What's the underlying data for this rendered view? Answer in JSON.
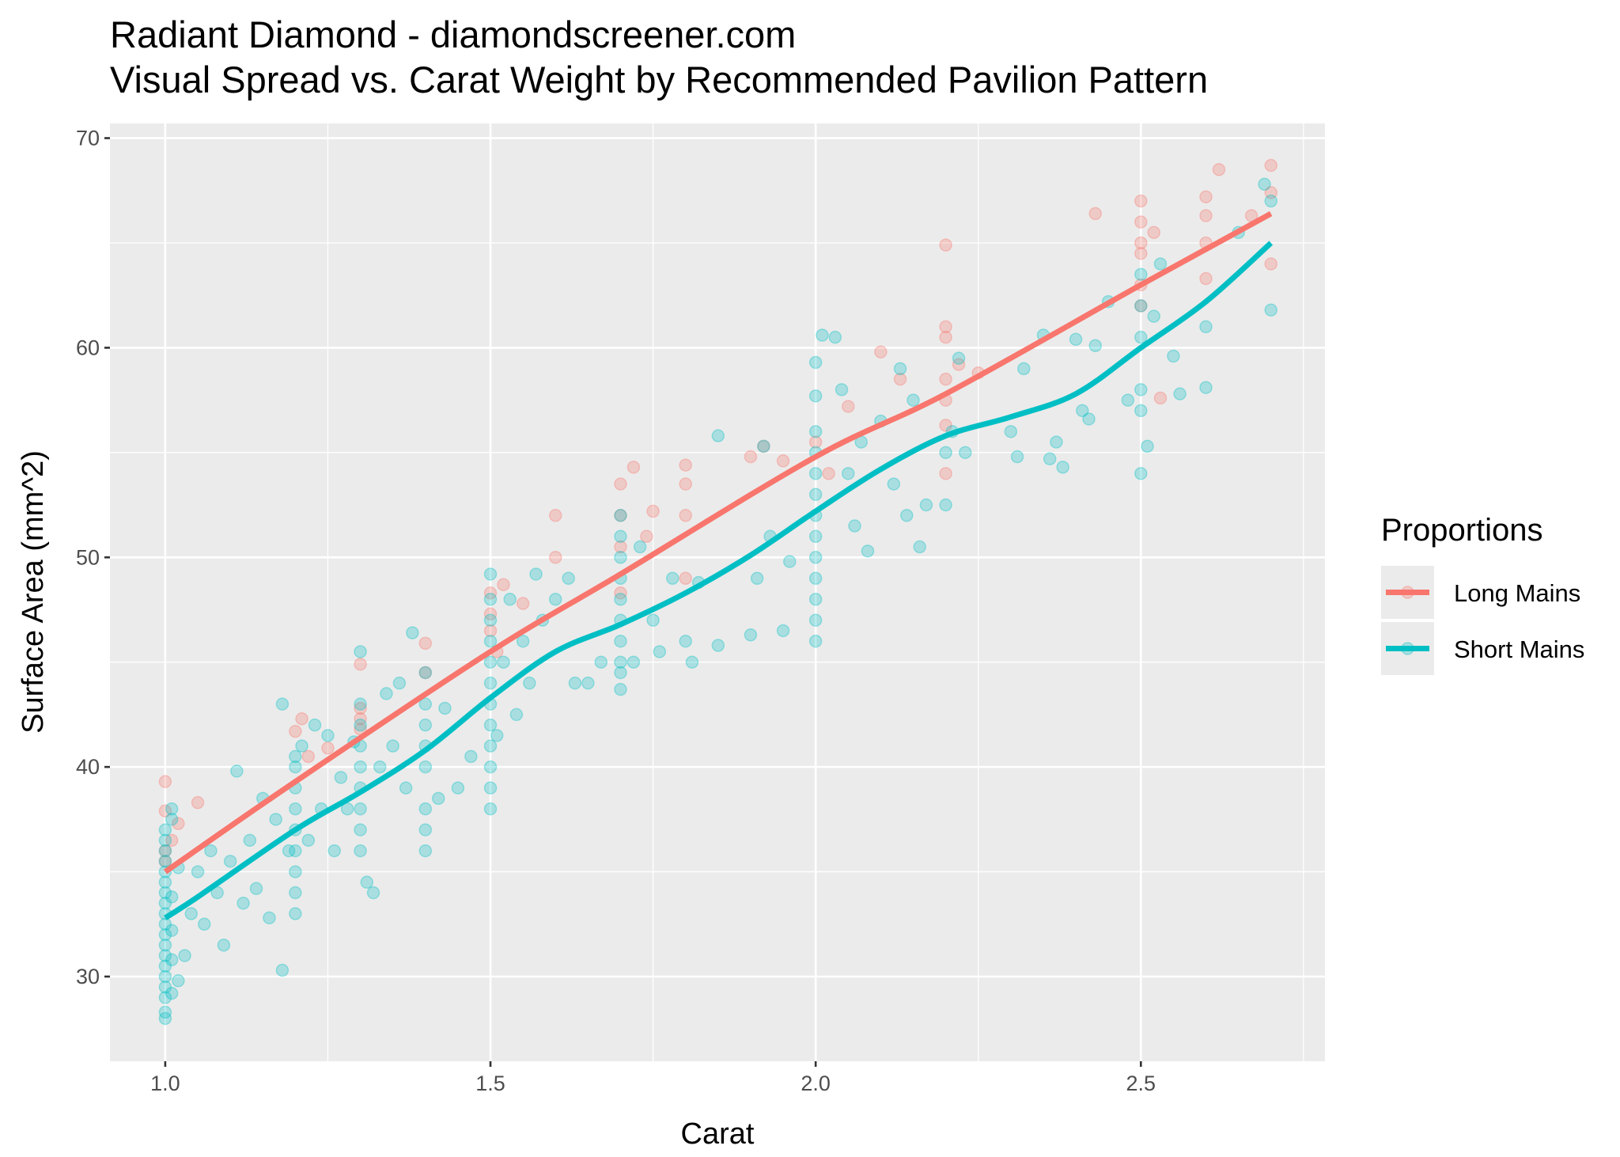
{
  "chart_data": {
    "type": "scatter",
    "title": "Radiant Diamond - diamondscreener.com",
    "subtitle": "Visual Spread vs. Carat Weight by Recommended Pavilion Pattern",
    "xlabel": "Carat",
    "ylabel": "Surface Area (mm^2)",
    "xlim": [
      0.915,
      2.783
    ],
    "ylim": [
      25.96,
      70.7
    ],
    "x_ticks": [
      "1.0",
      "1.5",
      "2.0",
      "2.5"
    ],
    "y_ticks": [
      "30",
      "40",
      "50",
      "60",
      "70"
    ],
    "grid": true,
    "legend": {
      "title": "Proportions",
      "placement": "right"
    },
    "series": [
      {
        "name": "Long Mains",
        "color": "#F8766D",
        "points": [
          [
            1.0,
            37.9
          ],
          [
            1.0,
            39.3
          ],
          [
            1.0,
            36
          ],
          [
            1.01,
            36.5
          ],
          [
            1.0,
            35.5
          ],
          [
            1.02,
            37.3
          ],
          [
            1.05,
            38.3
          ],
          [
            1.2,
            41.7
          ],
          [
            1.21,
            42.3
          ],
          [
            1.22,
            40.5
          ],
          [
            1.25,
            40.9
          ],
          [
            1.3,
            42.8
          ],
          [
            1.3,
            42.3
          ],
          [
            1.3,
            41.8
          ],
          [
            1.3,
            44.9
          ],
          [
            1.4,
            45.9
          ],
          [
            1.4,
            44.5
          ],
          [
            1.5,
            46.5
          ],
          [
            1.5,
            47.3
          ],
          [
            1.5,
            48.3
          ],
          [
            1.51,
            45.5
          ],
          [
            1.52,
            48.7
          ],
          [
            1.55,
            47.8
          ],
          [
            1.6,
            52
          ],
          [
            1.6,
            50
          ],
          [
            1.7,
            52
          ],
          [
            1.7,
            53.5
          ],
          [
            1.7,
            50.5
          ],
          [
            1.7,
            48.3
          ],
          [
            1.72,
            54.3
          ],
          [
            1.74,
            51
          ],
          [
            1.75,
            52.2
          ],
          [
            1.8,
            54.4
          ],
          [
            1.8,
            53.5
          ],
          [
            1.8,
            52
          ],
          [
            1.8,
            49
          ],
          [
            1.9,
            54.8
          ],
          [
            1.92,
            55.3
          ],
          [
            1.95,
            54.6
          ],
          [
            2.0,
            55.5
          ],
          [
            2.02,
            54
          ],
          [
            2.05,
            57.2
          ],
          [
            2.1,
            59.8
          ],
          [
            2.13,
            58.5
          ],
          [
            2.2,
            64.9
          ],
          [
            2.2,
            61
          ],
          [
            2.2,
            60.5
          ],
          [
            2.2,
            58.5
          ],
          [
            2.2,
            57.5
          ],
          [
            2.2,
            56.3
          ],
          [
            2.2,
            54
          ],
          [
            2.22,
            59.2
          ],
          [
            2.25,
            58.8
          ],
          [
            2.43,
            66.4
          ],
          [
            2.5,
            67
          ],
          [
            2.5,
            66
          ],
          [
            2.5,
            65
          ],
          [
            2.5,
            64.5
          ],
          [
            2.5,
            63
          ],
          [
            2.5,
            62
          ],
          [
            2.52,
            65.5
          ],
          [
            2.53,
            57.6
          ],
          [
            2.6,
            67.2
          ],
          [
            2.6,
            66.3
          ],
          [
            2.6,
            65
          ],
          [
            2.6,
            63.3
          ],
          [
            2.62,
            68.5
          ],
          [
            2.67,
            66.3
          ],
          [
            2.7,
            68.7
          ],
          [
            2.7,
            67.4
          ],
          [
            2.7,
            64
          ]
        ],
        "smooth": [
          [
            1.0,
            35.0
          ],
          [
            1.2,
            39.3
          ],
          [
            1.5,
            45.5
          ],
          [
            1.7,
            49.2
          ],
          [
            2.0,
            54.8
          ],
          [
            2.2,
            57.8
          ],
          [
            2.5,
            63.0
          ],
          [
            2.7,
            66.4
          ]
        ]
      },
      {
        "name": "Short Mains",
        "color": "#00BFC4",
        "points": [
          [
            1.0,
            28
          ],
          [
            1.0,
            28.3
          ],
          [
            1.0,
            29
          ],
          [
            1.0,
            29.5
          ],
          [
            1.0,
            30
          ],
          [
            1.0,
            30.5
          ],
          [
            1.0,
            31
          ],
          [
            1.0,
            31.5
          ],
          [
            1.0,
            32
          ],
          [
            1.0,
            32.5
          ],
          [
            1.0,
            33
          ],
          [
            1.0,
            33.5
          ],
          [
            1.0,
            34
          ],
          [
            1.0,
            34.5
          ],
          [
            1.0,
            35
          ],
          [
            1.0,
            35.5
          ],
          [
            1.0,
            36
          ],
          [
            1.0,
            36.5
          ],
          [
            1.0,
            37
          ],
          [
            1.01,
            37.5
          ],
          [
            1.01,
            38
          ],
          [
            1.01,
            29.2
          ],
          [
            1.01,
            30.8
          ],
          [
            1.01,
            32.2
          ],
          [
            1.01,
            33.8
          ],
          [
            1.02,
            35.2
          ],
          [
            1.02,
            29.8
          ],
          [
            1.03,
            31
          ],
          [
            1.04,
            33
          ],
          [
            1.05,
            35
          ],
          [
            1.06,
            32.5
          ],
          [
            1.07,
            36
          ],
          [
            1.08,
            34
          ],
          [
            1.09,
            31.5
          ],
          [
            1.1,
            35.5
          ],
          [
            1.11,
            39.8
          ],
          [
            1.12,
            33.5
          ],
          [
            1.13,
            36.5
          ],
          [
            1.14,
            34.2
          ],
          [
            1.15,
            38.5
          ],
          [
            1.16,
            32.8
          ],
          [
            1.17,
            37.5
          ],
          [
            1.18,
            43
          ],
          [
            1.18,
            30.3
          ],
          [
            1.19,
            36
          ],
          [
            1.2,
            33
          ],
          [
            1.2,
            34
          ],
          [
            1.2,
            35
          ],
          [
            1.2,
            36
          ],
          [
            1.2,
            37
          ],
          [
            1.2,
            38
          ],
          [
            1.2,
            39
          ],
          [
            1.2,
            40
          ],
          [
            1.2,
            40.5
          ],
          [
            1.21,
            41
          ],
          [
            1.22,
            36.5
          ],
          [
            1.23,
            42
          ],
          [
            1.24,
            38
          ],
          [
            1.25,
            41.5
          ],
          [
            1.26,
            36
          ],
          [
            1.27,
            39.5
          ],
          [
            1.28,
            38
          ],
          [
            1.29,
            41.2
          ],
          [
            1.3,
            36
          ],
          [
            1.3,
            37
          ],
          [
            1.3,
            38
          ],
          [
            1.3,
            39
          ],
          [
            1.3,
            40
          ],
          [
            1.3,
            41
          ],
          [
            1.3,
            42
          ],
          [
            1.3,
            43
          ],
          [
            1.3,
            45.5
          ],
          [
            1.31,
            34.5
          ],
          [
            1.32,
            34
          ],
          [
            1.33,
            40
          ],
          [
            1.34,
            43.5
          ],
          [
            1.35,
            41
          ],
          [
            1.36,
            44
          ],
          [
            1.37,
            39
          ],
          [
            1.38,
            46.4
          ],
          [
            1.4,
            36
          ],
          [
            1.4,
            37
          ],
          [
            1.4,
            38
          ],
          [
            1.4,
            40
          ],
          [
            1.4,
            41
          ],
          [
            1.4,
            42
          ],
          [
            1.4,
            43
          ],
          [
            1.4,
            44.5
          ],
          [
            1.42,
            38.5
          ],
          [
            1.43,
            42.8
          ],
          [
            1.45,
            39
          ],
          [
            1.47,
            40.5
          ],
          [
            1.5,
            38
          ],
          [
            1.5,
            39
          ],
          [
            1.5,
            40
          ],
          [
            1.5,
            41
          ],
          [
            1.5,
            42
          ],
          [
            1.5,
            43
          ],
          [
            1.5,
            44
          ],
          [
            1.5,
            45
          ],
          [
            1.5,
            46
          ],
          [
            1.5,
            47
          ],
          [
            1.5,
            48
          ],
          [
            1.5,
            49.2
          ],
          [
            1.51,
            41.5
          ],
          [
            1.52,
            45
          ],
          [
            1.53,
            48
          ],
          [
            1.54,
            42.5
          ],
          [
            1.55,
            46
          ],
          [
            1.56,
            44
          ],
          [
            1.57,
            49.2
          ],
          [
            1.58,
            47
          ],
          [
            1.6,
            48
          ],
          [
            1.62,
            49
          ],
          [
            1.63,
            44
          ],
          [
            1.65,
            44
          ],
          [
            1.67,
            45
          ],
          [
            1.7,
            43.7
          ],
          [
            1.7,
            44.5
          ],
          [
            1.7,
            45
          ],
          [
            1.7,
            46
          ],
          [
            1.7,
            47
          ],
          [
            1.7,
            48
          ],
          [
            1.7,
            49
          ],
          [
            1.7,
            50
          ],
          [
            1.7,
            51
          ],
          [
            1.7,
            52
          ],
          [
            1.72,
            45
          ],
          [
            1.73,
            50.5
          ],
          [
            1.75,
            47
          ],
          [
            1.76,
            45.5
          ],
          [
            1.78,
            49
          ],
          [
            1.8,
            46
          ],
          [
            1.81,
            45
          ],
          [
            1.82,
            48.8
          ],
          [
            1.85,
            55.8
          ],
          [
            1.85,
            45.8
          ],
          [
            1.9,
            46.3
          ],
          [
            1.91,
            49
          ],
          [
            1.92,
            55.3
          ],
          [
            1.93,
            51
          ],
          [
            1.95,
            46.5
          ],
          [
            1.96,
            49.8
          ],
          [
            2.0,
            46
          ],
          [
            2.0,
            47
          ],
          [
            2.0,
            48
          ],
          [
            2.0,
            49
          ],
          [
            2.0,
            50
          ],
          [
            2.0,
            51
          ],
          [
            2.0,
            52
          ],
          [
            2.0,
            53
          ],
          [
            2.0,
            54
          ],
          [
            2.0,
            55
          ],
          [
            2.0,
            56
          ],
          [
            2.0,
            57.7
          ],
          [
            2.0,
            59.3
          ],
          [
            2.01,
            60.6
          ],
          [
            2.03,
            60.5
          ],
          [
            2.04,
            58
          ],
          [
            2.05,
            54
          ],
          [
            2.06,
            51.5
          ],
          [
            2.07,
            55.5
          ],
          [
            2.08,
            50.3
          ],
          [
            2.1,
            56.5
          ],
          [
            2.12,
            53.5
          ],
          [
            2.13,
            59
          ],
          [
            2.14,
            52
          ],
          [
            2.15,
            57.5
          ],
          [
            2.16,
            50.5
          ],
          [
            2.17,
            52.5
          ],
          [
            2.2,
            52.5
          ],
          [
            2.2,
            55
          ],
          [
            2.21,
            56
          ],
          [
            2.22,
            59.5
          ],
          [
            2.23,
            55
          ],
          [
            2.3,
            56
          ],
          [
            2.31,
            54.8
          ],
          [
            2.32,
            59
          ],
          [
            2.35,
            60.6
          ],
          [
            2.36,
            54.7
          ],
          [
            2.37,
            55.5
          ],
          [
            2.38,
            54.3
          ],
          [
            2.4,
            60.4
          ],
          [
            2.41,
            57
          ],
          [
            2.42,
            56.6
          ],
          [
            2.43,
            60.1
          ],
          [
            2.45,
            62.2
          ],
          [
            2.48,
            57.5
          ],
          [
            2.5,
            54
          ],
          [
            2.5,
            57
          ],
          [
            2.5,
            58
          ],
          [
            2.5,
            60.5
          ],
          [
            2.5,
            62
          ],
          [
            2.5,
            63.5
          ],
          [
            2.51,
            55.3
          ],
          [
            2.52,
            61.5
          ],
          [
            2.53,
            64
          ],
          [
            2.55,
            59.6
          ],
          [
            2.56,
            57.8
          ],
          [
            2.6,
            61
          ],
          [
            2.6,
            58.1
          ],
          [
            2.65,
            65.5
          ],
          [
            2.7,
            61.8
          ],
          [
            2.7,
            67
          ],
          [
            2.69,
            67.8
          ]
        ],
        "smooth": [
          [
            1.0,
            32.8
          ],
          [
            1.05,
            33.8
          ],
          [
            1.2,
            37.0
          ],
          [
            1.3,
            38.8
          ],
          [
            1.4,
            40.8
          ],
          [
            1.5,
            43.3
          ],
          [
            1.6,
            45.5
          ],
          [
            1.7,
            46.8
          ],
          [
            1.8,
            48.3
          ],
          [
            1.9,
            50.1
          ],
          [
            2.0,
            52.2
          ],
          [
            2.1,
            54.2
          ],
          [
            2.2,
            55.8
          ],
          [
            2.3,
            56.7
          ],
          [
            2.4,
            57.8
          ],
          [
            2.5,
            60.0
          ],
          [
            2.6,
            62.2
          ],
          [
            2.7,
            65.0
          ]
        ]
      }
    ]
  }
}
